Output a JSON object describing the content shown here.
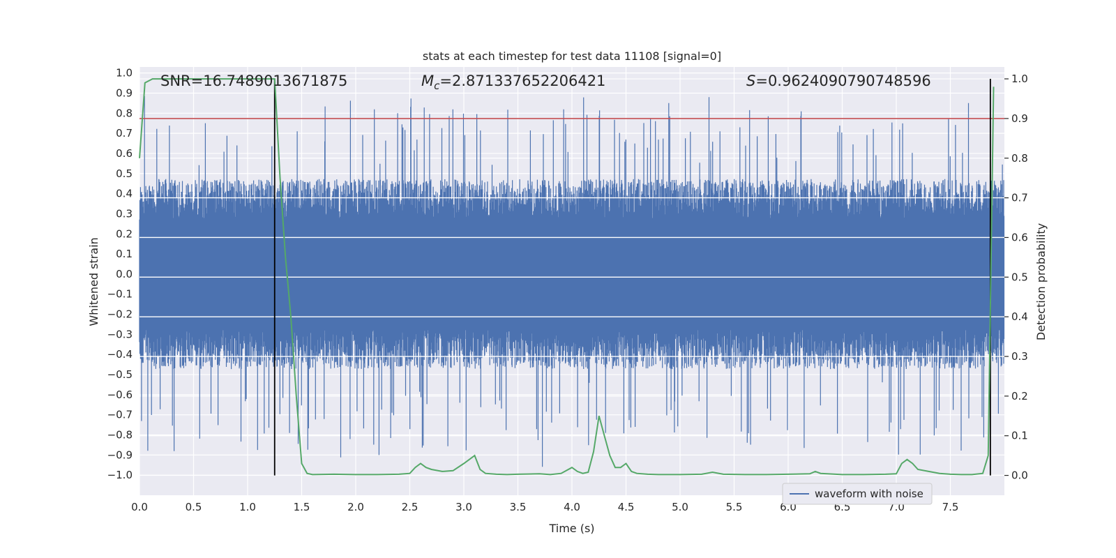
{
  "chart_data": {
    "type": "line",
    "title": "stats at each timestep for test data 11108 [signal=0]",
    "xlabel": "Time (s)",
    "ylabel": "Whitened strain",
    "y2label": "Detection probability",
    "xlim": [
      0.0,
      8.0
    ],
    "ylim": [
      -1.1,
      1.03
    ],
    "y2lim": [
      -0.05,
      1.03
    ],
    "x_ticks": [
      "0.0",
      "0.5",
      "1.0",
      "1.5",
      "2.0",
      "2.5",
      "3.0",
      "3.5",
      "4.0",
      "4.5",
      "5.0",
      "5.5",
      "6.0",
      "6.5",
      "7.0",
      "7.5"
    ],
    "y_ticks": [
      "1.0",
      "0.9",
      "0.8",
      "0.7",
      "0.6",
      "0.5",
      "0.4",
      "0.3",
      "0.2",
      "0.1",
      "0.0",
      "−0.1",
      "−0.2",
      "−0.3",
      "−0.4",
      "−0.5",
      "−0.6",
      "−0.7",
      "−0.8",
      "−0.9",
      "−1.0"
    ],
    "y2_ticks": [
      "1.0",
      "0.9",
      "0.8",
      "0.7",
      "0.6",
      "0.5",
      "0.4",
      "0.3",
      "0.2",
      "0.1",
      "0.0"
    ],
    "annotations": {
      "snr": "SNR=16.7489013671875",
      "mc_symbol": "M",
      "mc_sub": "c",
      "mc_value": "=2.871337652206421",
      "s_symbol": "S",
      "s_value": "=0.9624090790748596"
    },
    "threshold_prob": 0.9,
    "vertical_lines_x": [
      1.25,
      7.87
    ],
    "grid": true,
    "legend": {
      "position": "bottom-right",
      "entries": [
        "waveform with noise"
      ]
    },
    "series": [
      {
        "name": "waveform with noise",
        "axis": "left",
        "color": "#4c72b0",
        "envelope_typical": 0.45,
        "envelope_peak_max": 0.92,
        "envelope_peak_min": -1.0
      },
      {
        "axis": "right",
        "color": "#55a868",
        "x": [
          0.0,
          0.05,
          0.12,
          0.3,
          0.5,
          0.7,
          0.9,
          1.0,
          1.1,
          1.2,
          1.25,
          1.3,
          1.35,
          1.4,
          1.45,
          1.5,
          1.55,
          1.6,
          1.8,
          2.0,
          2.2,
          2.4,
          2.5,
          2.55,
          2.6,
          2.65,
          2.7,
          2.8,
          2.9,
          3.0,
          3.05,
          3.1,
          3.15,
          3.2,
          3.3,
          3.4,
          3.5,
          3.7,
          3.8,
          3.9,
          4.0,
          4.05,
          4.1,
          4.15,
          4.2,
          4.25,
          4.3,
          4.35,
          4.4,
          4.45,
          4.5,
          4.55,
          4.6,
          4.7,
          4.8,
          5.0,
          5.2,
          5.3,
          5.4,
          5.6,
          5.8,
          6.0,
          6.2,
          6.25,
          6.3,
          6.5,
          6.7,
          6.9,
          7.0,
          7.05,
          7.1,
          7.15,
          7.2,
          7.3,
          7.4,
          7.5,
          7.6,
          7.7,
          7.8,
          7.85,
          7.9
        ],
        "values": [
          0.8,
          0.99,
          1.0,
          1.0,
          1.0,
          1.0,
          1.0,
          1.0,
          1.0,
          1.0,
          1.0,
          0.75,
          0.55,
          0.4,
          0.2,
          0.03,
          0.005,
          0.002,
          0.003,
          0.002,
          0.002,
          0.003,
          0.005,
          0.02,
          0.03,
          0.02,
          0.015,
          0.01,
          0.012,
          0.03,
          0.04,
          0.05,
          0.015,
          0.005,
          0.003,
          0.002,
          0.003,
          0.004,
          0.002,
          0.005,
          0.02,
          0.01,
          0.005,
          0.008,
          0.06,
          0.15,
          0.1,
          0.05,
          0.02,
          0.02,
          0.03,
          0.01,
          0.005,
          0.003,
          0.002,
          0.002,
          0.003,
          0.008,
          0.003,
          0.002,
          0.002,
          0.003,
          0.004,
          0.01,
          0.005,
          0.002,
          0.002,
          0.003,
          0.004,
          0.03,
          0.04,
          0.03,
          0.015,
          0.01,
          0.005,
          0.003,
          0.002,
          0.002,
          0.005,
          0.05,
          0.98
        ]
      }
    ]
  }
}
